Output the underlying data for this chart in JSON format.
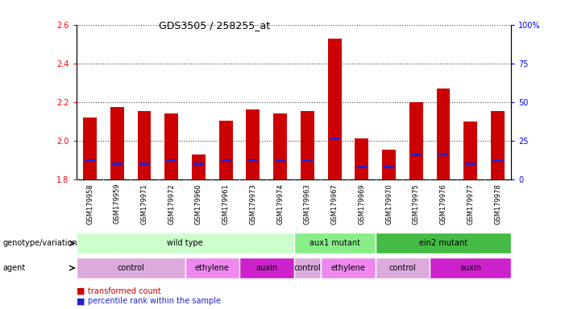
{
  "title": "GDS3505 / 258255_at",
  "samples": [
    "GSM179958",
    "GSM179959",
    "GSM179971",
    "GSM179972",
    "GSM179960",
    "GSM179961",
    "GSM179973",
    "GSM179974",
    "GSM179963",
    "GSM179967",
    "GSM179969",
    "GSM179970",
    "GSM179975",
    "GSM179976",
    "GSM179977",
    "GSM179978"
  ],
  "transformed_count": [
    2.12,
    2.175,
    2.155,
    2.14,
    1.93,
    2.105,
    2.16,
    2.14,
    2.155,
    2.53,
    2.01,
    1.955,
    2.2,
    2.27,
    2.1,
    2.155
  ],
  "percentile_rank": [
    12,
    10,
    10,
    12,
    10,
    12,
    12,
    12,
    12,
    26,
    8,
    8,
    16,
    16,
    10,
    12
  ],
  "ymin": 1.8,
  "ymax": 2.6,
  "pmin": 0,
  "pmax": 100,
  "bar_color": "#cc0000",
  "blue_color": "#2222cc",
  "genotype_groups": [
    {
      "label": "wild type",
      "start": 0,
      "end": 8,
      "color": "#ccffcc"
    },
    {
      "label": "aux1 mutant",
      "start": 8,
      "end": 11,
      "color": "#88ee88"
    },
    {
      "label": "ein2 mutant",
      "start": 11,
      "end": 16,
      "color": "#44bb44"
    }
  ],
  "agent_groups": [
    {
      "label": "control",
      "start": 0,
      "end": 4,
      "color": "#ddaadd"
    },
    {
      "label": "ethylene",
      "start": 4,
      "end": 6,
      "color": "#ee88ee"
    },
    {
      "label": "auxin",
      "start": 6,
      "end": 8,
      "color": "#cc22cc"
    },
    {
      "label": "control",
      "start": 8,
      "end": 9,
      "color": "#ddaadd"
    },
    {
      "label": "ethylene",
      "start": 9,
      "end": 11,
      "color": "#ee88ee"
    },
    {
      "label": "control",
      "start": 11,
      "end": 13,
      "color": "#ddaadd"
    },
    {
      "label": "auxin",
      "start": 13,
      "end": 16,
      "color": "#cc22cc"
    }
  ]
}
